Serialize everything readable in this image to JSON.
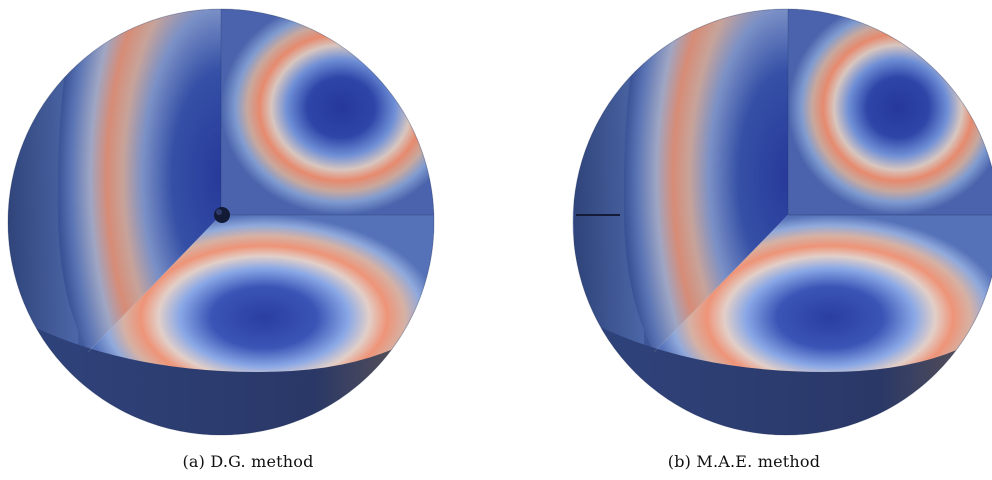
{
  "panels": [
    {
      "caption": "(a) D.G. method"
    },
    {
      "caption": "(b) M.A.E. method"
    }
  ],
  "colors": {
    "low": "#2b3d9c",
    "mid": "#6a86c8",
    "high": "#e8866a",
    "shell_dark": "#22335a",
    "shell_light": "#5a78b8"
  }
}
